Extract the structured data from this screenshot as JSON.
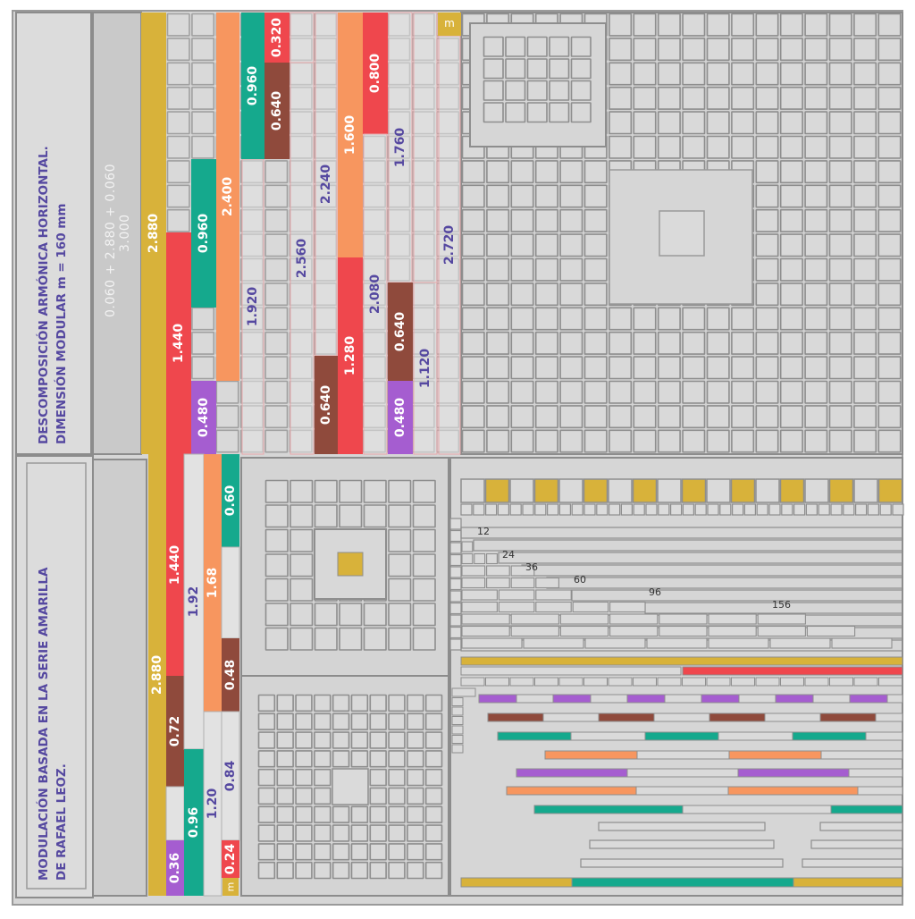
{
  "panels": {
    "top": {
      "title_line1": "DESCOMPOSICIÓN ARMÓNICA HORIZONTAL.",
      "title_line2": "DIMENSIÓN MODULAR m = 160 mm",
      "formula_line1": "0.060 + 2.880 + 0.060",
      "formula_line2": "3.000",
      "module_label": "m"
    },
    "bottom": {
      "title_line1": "MODULACIÓN BASADA EN LA SERIE AMARILLA",
      "title_line2": "DE  RAFAEL LEOZ.",
      "module_label": "m"
    }
  },
  "colors": {
    "yellow": "#d8b23a",
    "red": "#ef474d",
    "teal": "#15a98d",
    "orange": "#f7965f",
    "purple": "#a55dd0",
    "brown": "#8f4a3c",
    "gray": "#d9d9d9",
    "label_dark": "#5548a0",
    "label_light": "#ffffff"
  },
  "top_columns": [
    [
      {
        "v": "2.880",
        "c": "yellow",
        "lc": "light"
      }
    ],
    [
      {
        "v": "",
        "c": "gray"
      },
      {
        "v": "1.440",
        "c": "red",
        "lc": "light"
      },
      {
        "v": "",
        "c": "gray"
      }
    ],
    [
      {
        "v": "",
        "c": "gray"
      },
      {
        "v": "0.960",
        "c": "teal",
        "lc": "light"
      },
      {
        "v": "",
        "c": "gray"
      },
      {
        "v": "0.480",
        "c": "purple",
        "lc": "light"
      }
    ],
    [
      {
        "v": "2.400",
        "c": "orange",
        "lc": "light"
      },
      {
        "v": "",
        "c": "gray"
      }
    ],
    [
      {
        "v": "",
        "c": "gray"
      },
      {
        "v": "1.920",
        "c": "gray",
        "lc": "dark"
      }
    ],
    [
      {
        "v": "0.960",
        "c": "teal",
        "lc": "light"
      },
      {
        "v": "",
        "c": "gray"
      }
    ],
    [
      {
        "v": "0.320",
        "c": "red",
        "lc": "light"
      },
      {
        "v": "0.640",
        "c": "brown",
        "lc": "light"
      },
      {
        "v": "",
        "c": "gray"
      }
    ],
    [
      {
        "v": "",
        "c": "gray"
      },
      {
        "v": "2.560",
        "c": "gray",
        "lc": "dark"
      }
    ],
    [
      {
        "v": "2.240",
        "c": "gray",
        "lc": "dark"
      },
      {
        "v": "0.640",
        "c": "brown",
        "lc": "light"
      }
    ],
    [
      {
        "v": "1.600",
        "c": "orange",
        "lc": "light"
      },
      {
        "v": "1.280",
        "c": "red",
        "lc": "light"
      }
    ],
    [
      {
        "v": "0.800",
        "c": "red",
        "lc": "light"
      },
      {
        "v": "2.080",
        "c": "gray",
        "lc": "dark"
      }
    ],
    [
      {
        "v": "1.760",
        "c": "gray",
        "lc": "dark"
      },
      {
        "v": "0.640",
        "c": "brown",
        "lc": "light"
      },
      {
        "v": "0.480",
        "c": "purple",
        "lc": "light"
      }
    ],
    [
      {
        "v": "",
        "c": "gray"
      },
      {
        "v": "1.120",
        "c": "gray",
        "lc": "dark"
      }
    ],
    [
      {
        "v": "2.720",
        "c": "gray",
        "lc": "dark"
      }
    ]
  ],
  "bottom_columns": [
    [
      {
        "v": "2.880",
        "c": "yellow",
        "lc": "light"
      }
    ],
    [
      {
        "v": "1.440",
        "c": "red",
        "lc": "light"
      },
      {
        "v": "0.72",
        "c": "brown",
        "lc": "light"
      },
      {
        "v": "",
        "c": "gray"
      },
      {
        "v": "0.36",
        "c": "purple",
        "lc": "light"
      }
    ],
    [
      {
        "v": "1.92",
        "c": "gray",
        "lc": "dark"
      },
      {
        "v": "0.96",
        "c": "teal",
        "lc": "light"
      }
    ],
    [
      {
        "v": "1.68",
        "c": "orange",
        "lc": "light"
      },
      {
        "v": "1.20",
        "c": "gray",
        "lc": "dark"
      }
    ],
    [
      {
        "v": "0.60",
        "c": "teal",
        "lc": "light"
      },
      {
        "v": "",
        "c": "gray"
      },
      {
        "v": "0.48",
        "c": "brown",
        "lc": "light"
      },
      {
        "v": "0.84",
        "c": "gray",
        "lc": "dark"
      },
      {
        "v": "0.24",
        "c": "red",
        "lc": "light"
      }
    ]
  ],
  "staircase_labels": [
    "12",
    "24",
    "36",
    "60",
    "96",
    "156"
  ]
}
